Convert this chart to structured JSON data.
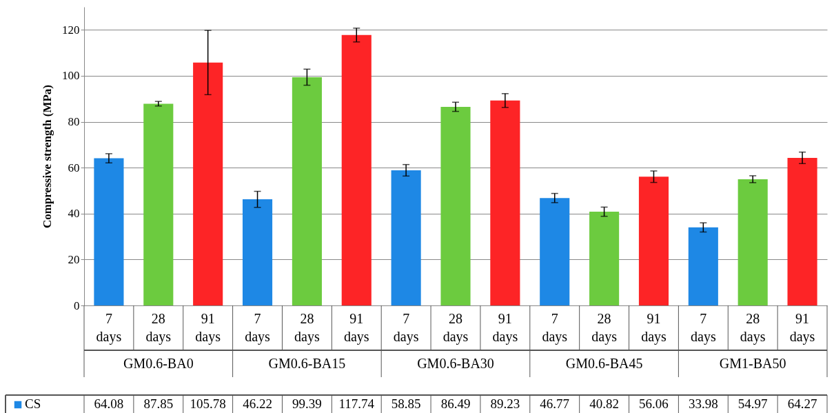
{
  "chart_data": {
    "type": "bar",
    "ylabel": "Compressive strength (MPa)",
    "categories": [
      "7 days",
      "28 days",
      "91 days",
      "7 days",
      "28 days",
      "91 days",
      "7 days",
      "28 days",
      "91 days",
      "7 days",
      "28 days",
      "91 days",
      "7 days",
      "28 days",
      "91 days"
    ],
    "annotations": [
      "GM0.6-BA0",
      "GM0.6-BA15",
      "GM0.6-BA30",
      "GM0.6-BA45",
      "GM1-BA50"
    ],
    "series": [
      {
        "name": "CS",
        "color": "#1e88e5",
        "values": [
          64.08,
          87.85,
          105.78,
          46.22,
          99.39,
          117.74,
          58.85,
          86.49,
          89.23,
          46.77,
          40.82,
          56.06,
          33.98,
          54.97,
          64.27
        ],
        "colors": [
          "#1e88e5",
          "#6ccb3f",
          "#fd2426",
          "#1e88e5",
          "#6ccb3f",
          "#fd2426",
          "#1e88e5",
          "#6ccb3f",
          "#fd2426",
          "#1e88e5",
          "#6ccb3f",
          "#fd2426",
          "#1e88e5",
          "#6ccb3f",
          "#fd2426"
        ],
        "errors": [
          2,
          1,
          14,
          3.5,
          3.5,
          3,
          2.5,
          2,
          3,
          2,
          2,
          2.5,
          2,
          1.5,
          2.5
        ]
      }
    ],
    "ylim": [
      0,
      130
    ],
    "yticks": [
      0,
      20,
      40,
      60,
      80,
      100,
      120
    ],
    "grid": "y",
    "data_labels": true
  }
}
